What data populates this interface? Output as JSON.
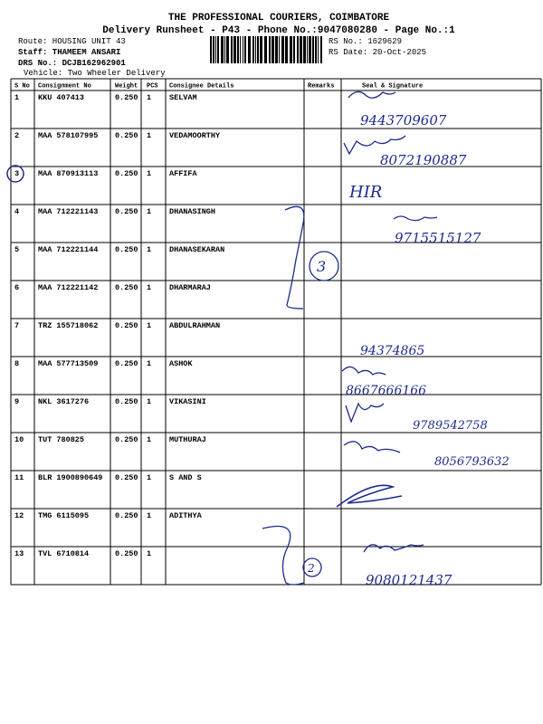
{
  "header": {
    "title": "THE PROFESSIONAL COURIERS, COIMBATORE",
    "subtitle": "Delivery Runsheet - P43 - Phone No.:9047080280 - Page No.:1",
    "route": "Route: HOUSING UNIT 43",
    "staff": "Staff: THAMEEM ANSARI",
    "drs": "DRS No.: DCJB162962901",
    "vehicle": "Vehicle: Two Wheeler Delivery",
    "rs_no": "RS No.: 1629629",
    "rs_date": "RS Date: 20-Oct-2025"
  },
  "table": {
    "columns": [
      "S No",
      "Consignment No",
      "Weight",
      "PCS",
      "Consignee Details",
      "Remarks",
      "Seal & Signature"
    ],
    "rows": [
      [
        "1",
        "KKU 407413",
        "0.250",
        "1",
        "SELVAM"
      ],
      [
        "2",
        "MAA 578107995",
        "0.250",
        "1",
        "VEDAMOORTHY"
      ],
      [
        "3",
        "MAA 870913113",
        "0.250",
        "1",
        "AFFIFA"
      ],
      [
        "4",
        "MAA 712221143",
        "0.250",
        "1",
        "DHANASINGH"
      ],
      [
        "5",
        "MAA 712221144",
        "0.250",
        "1",
        "DHANASEKARAN"
      ],
      [
        "6",
        "MAA 712221142",
        "0.250",
        "1",
        "DHARMARAJ"
      ],
      [
        "7",
        "TRZ 155718062",
        "0.250",
        "1",
        "ABDULRAHMAN"
      ],
      [
        "8",
        "MAA 577713509",
        "0.250",
        "1",
        "ASHOK"
      ],
      [
        "9",
        "NKL 3617276",
        "0.250",
        "1",
        "VIKASINI"
      ],
      [
        "10",
        "TUT 780825",
        "0.250",
        "1",
        "MUTHURAJ"
      ],
      [
        "11",
        "BLR 1900890649",
        "0.250",
        "1",
        "S AND S"
      ],
      [
        "12",
        "TMG 6115095",
        "0.250",
        "1",
        "ADITHYA"
      ],
      [
        "13",
        "TVL 6710814",
        "0.250",
        "1",
        ""
      ]
    ]
  },
  "handwritten": [
    "9443709607",
    "8072190887",
    "HIR",
    "9715515127",
    "3",
    "94374865",
    "8667666166",
    "9789542758",
    "8056793632",
    "2",
    "9080121437"
  ]
}
